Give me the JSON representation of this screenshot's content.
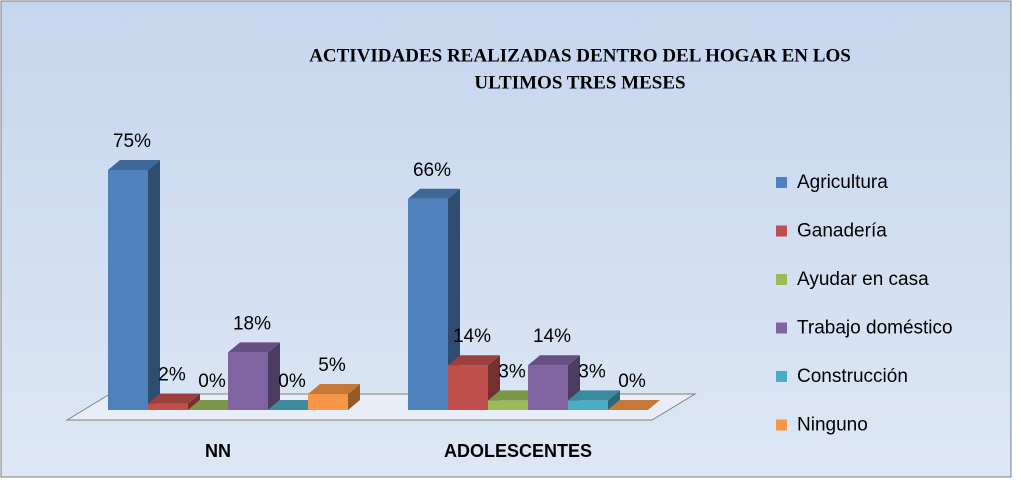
{
  "chart_data": {
    "type": "bar3d",
    "title": [
      "ACTIVIDADES REALIZADAS  DENTRO DEL HOGAR EN LOS",
      "ULTIMOS TRES MESES"
    ],
    "categories": [
      "NN",
      "ADOLESCENTES"
    ],
    "series": [
      {
        "name": "Agricultura",
        "color": "#4F81BD",
        "values": [
          75,
          66
        ],
        "value_labels": [
          "75%",
          "66%"
        ]
      },
      {
        "name": "Ganadería",
        "color": "#C0504D",
        "values": [
          2,
          14
        ],
        "value_labels": [
          "2%",
          "14%"
        ]
      },
      {
        "name": "Ayudar en casa",
        "color": "#9BBB59",
        "values": [
          0,
          3
        ],
        "value_labels": [
          "0%",
          "3%"
        ]
      },
      {
        "name": "Trabajo doméstico",
        "color": "#8064A2",
        "values": [
          18,
          14
        ],
        "value_labels": [
          "18%",
          "14%"
        ]
      },
      {
        "name": "Construcción",
        "color": "#4BACC6",
        "values": [
          0,
          3
        ],
        "value_labels": [
          "0%",
          "3%"
        ]
      },
      {
        "name": "Ninguno",
        "color": "#F79646",
        "values": [
          5,
          0
        ],
        "value_labels": [
          "5%",
          "0%"
        ]
      }
    ]
  }
}
